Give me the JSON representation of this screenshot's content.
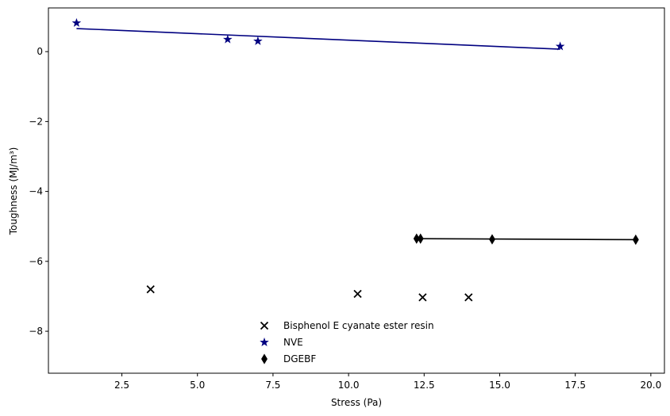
{
  "chart_data": {
    "type": "scatter",
    "title": "",
    "xlabel": "Stress (Pa)",
    "ylabel": "Toughness (MJ/m³)",
    "xlim": [
      0.07,
      20.45
    ],
    "ylim": [
      -9.2,
      1.25
    ],
    "xticks": [
      2.5,
      5.0,
      7.5,
      10.0,
      12.5,
      15.0,
      17.5,
      20.0
    ],
    "xtick_labels": [
      "2.5",
      "5.0",
      "7.5",
      "10.0",
      "12.5",
      "15.0",
      "17.5",
      "20.0"
    ],
    "yticks": [
      -8,
      -6,
      -4,
      -2,
      0
    ],
    "ytick_labels": [
      "−8",
      "−6",
      "−4",
      "−2",
      "0"
    ],
    "grid": false,
    "legend_position": "bottom-center",
    "series": [
      {
        "name": "Bisphenol E cyanate ester resin",
        "marker": "x",
        "color": "#000000",
        "points": [
          [
            3.45,
            -6.8
          ],
          [
            10.3,
            -6.93
          ],
          [
            12.45,
            -7.03
          ],
          [
            13.97,
            -7.03
          ]
        ],
        "fit_line": null
      },
      {
        "name": "NVE",
        "marker": "star",
        "color": "#000080",
        "points": [
          [
            1.0,
            0.82
          ],
          [
            6.0,
            0.35
          ],
          [
            7.0,
            0.3
          ],
          [
            17.0,
            0.15
          ]
        ],
        "fit_line": [
          [
            1.0,
            0.66
          ],
          [
            17.0,
            0.07
          ]
        ]
      },
      {
        "name": "DGEBF",
        "marker": "thin_diamond",
        "color": "#000000",
        "points": [
          [
            12.25,
            -5.35
          ],
          [
            12.38,
            -5.35
          ],
          [
            14.75,
            -5.37
          ],
          [
            19.5,
            -5.38
          ]
        ],
        "fit_line": [
          [
            12.25,
            -5.35
          ],
          [
            19.5,
            -5.38
          ]
        ]
      }
    ]
  }
}
